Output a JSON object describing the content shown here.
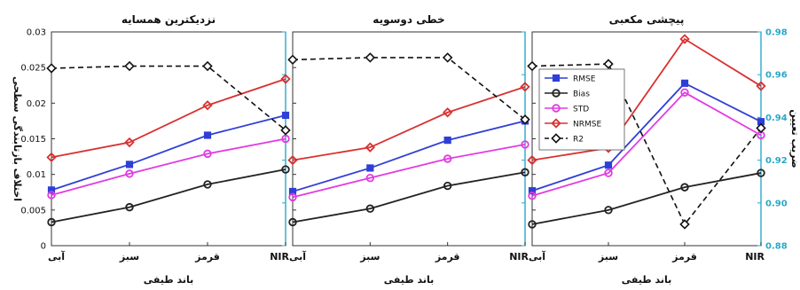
{
  "chart_data": [
    {
      "type": "line",
      "title": "نزدیکترین همسایه",
      "categories": [
        "آبی",
        "سبز",
        "قرمز",
        "NIR"
      ],
      "xlabel": "باند طیفی",
      "ylabel": "اختلاف بازتابندگی سطحی",
      "ylim": [
        0,
        0.03
      ],
      "y2lim": [
        0.88,
        0.98
      ],
      "series": [
        {
          "name": "RMSE",
          "color": "#2f3fd6",
          "marker": "square",
          "axis": "left",
          "values": [
            0.0078,
            0.0114,
            0.0155,
            0.0183
          ]
        },
        {
          "name": "Bias",
          "color": "#222222",
          "marker": "circle",
          "axis": "left",
          "values": [
            0.0033,
            0.0054,
            0.0086,
            0.0107
          ]
        },
        {
          "name": "STD",
          "color": "#e23be2",
          "marker": "circle",
          "axis": "left",
          "values": [
            0.0071,
            0.0101,
            0.0129,
            0.015
          ]
        },
        {
          "name": "NRMSE",
          "color": "#d93030",
          "marker": "diamond",
          "axis": "left",
          "values": [
            0.0124,
            0.0145,
            0.0197,
            0.0234
          ]
        },
        {
          "name": "R2",
          "color": "#111111",
          "marker": "diamond-open",
          "dash": true,
          "axis": "right",
          "values": [
            0.963,
            0.964,
            0.964,
            0.934
          ]
        }
      ]
    },
    {
      "type": "line",
      "title": "خطی دوسویه",
      "categories": [
        "آبی",
        "سبز",
        "قرمز",
        "NIR"
      ],
      "xlabel": "باند طیفی",
      "ylim": [
        0,
        0.03
      ],
      "y2lim": [
        0.88,
        0.98
      ],
      "series": [
        {
          "name": "RMSE",
          "color": "#2f3fd6",
          "marker": "square",
          "axis": "left",
          "values": [
            0.0076,
            0.0109,
            0.0148,
            0.0175
          ]
        },
        {
          "name": "Bias",
          "color": "#222222",
          "marker": "circle",
          "axis": "left",
          "values": [
            0.0033,
            0.0052,
            0.0084,
            0.0103
          ]
        },
        {
          "name": "STD",
          "color": "#e23be2",
          "marker": "circle",
          "axis": "left",
          "values": [
            0.0068,
            0.0095,
            0.0122,
            0.0142
          ]
        },
        {
          "name": "NRMSE",
          "color": "#d93030",
          "marker": "diamond",
          "axis": "left",
          "values": [
            0.012,
            0.0138,
            0.0187,
            0.0223
          ]
        },
        {
          "name": "R2",
          "color": "#111111",
          "marker": "diamond-open",
          "dash": true,
          "axis": "right",
          "values": [
            0.967,
            0.968,
            0.968,
            0.939
          ]
        }
      ]
    },
    {
      "type": "line",
      "title": "پیچشی مکعبی",
      "categories": [
        "آبی",
        "سبز",
        "قرمز",
        "NIR"
      ],
      "xlabel": "باند طیفی",
      "y2label": "ضریب تعیین",
      "ylim": [
        0,
        0.03
      ],
      "y2lim": [
        0.88,
        0.98
      ],
      "y2ticks": [
        0.88,
        0.9,
        0.92,
        0.94,
        0.96,
        0.98
      ],
      "legend_position": "upper-left",
      "series": [
        {
          "name": "RMSE",
          "color": "#2f3fd6",
          "marker": "square",
          "axis": "left",
          "values": [
            0.0077,
            0.0113,
            0.0228,
            0.0174
          ]
        },
        {
          "name": "Bias",
          "color": "#222222",
          "marker": "circle",
          "axis": "left",
          "values": [
            0.003,
            0.005,
            0.0082,
            0.0102
          ]
        },
        {
          "name": "STD",
          "color": "#e23be2",
          "marker": "circle",
          "axis": "left",
          "values": [
            0.007,
            0.0102,
            0.0215,
            0.0155
          ]
        },
        {
          "name": "NRMSE",
          "color": "#d93030",
          "marker": "diamond",
          "axis": "left",
          "values": [
            0.012,
            0.0137,
            0.029,
            0.0224
          ]
        },
        {
          "name": "R2",
          "color": "#111111",
          "marker": "diamond-open",
          "dash": true,
          "axis": "right",
          "values": [
            0.964,
            0.965,
            0.89,
            0.935
          ]
        }
      ]
    }
  ],
  "axes": {
    "yticks_left": [
      "0",
      "0.005",
      "0.01",
      "0.015",
      "0.02",
      "0.025",
      "0.03"
    ],
    "yticks_right": [
      "0.88",
      "0.90",
      "0.92",
      "0.94",
      "0.96",
      "0.98"
    ]
  },
  "colors": {
    "frame": "#333333",
    "right_axis": "#2aa8c9"
  }
}
